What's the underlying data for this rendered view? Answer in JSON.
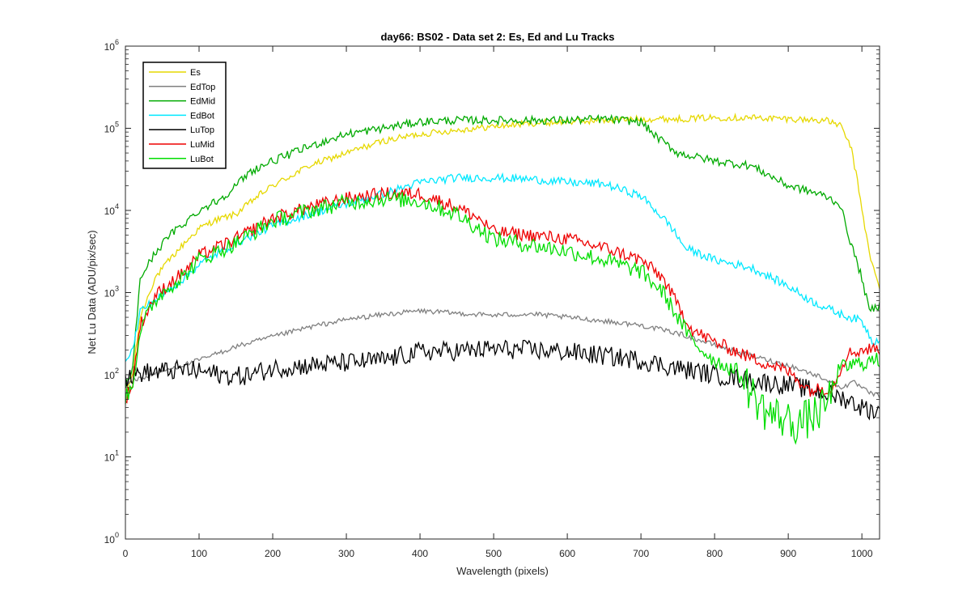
{
  "chart_data": {
    "type": "line",
    "title": "day66: BS02 - Data set 2: Es, Ed and Lu Tracks",
    "xlabel": "Wavelength (pixels)",
    "ylabel": "Net Lu Data (ADU/pix/sec)",
    "xlim": [
      0,
      1024
    ],
    "ylim": [
      1,
      1000000
    ],
    "yscale": "log",
    "grid": false,
    "legend_position": "top-left",
    "x_ticks": [
      0,
      100,
      200,
      300,
      400,
      500,
      600,
      700,
      800,
      900,
      1000
    ],
    "x_tick_labels": [
      "0",
      "100",
      "200",
      "300",
      "400",
      "500",
      "600",
      "700",
      "800",
      "900",
      "1000"
    ],
    "y_ticks": [
      1,
      10,
      100,
      1000,
      10000,
      100000,
      1000000
    ],
    "y_tick_labels": [
      {
        "base": "10",
        "exp": "0"
      },
      {
        "base": "10",
        "exp": "1"
      },
      {
        "base": "10",
        "exp": "2"
      },
      {
        "base": "10",
        "exp": "3"
      },
      {
        "base": "10",
        "exp": "4"
      },
      {
        "base": "10",
        "exp": "5"
      },
      {
        "base": "10",
        "exp": "6"
      }
    ],
    "series": [
      {
        "name": "Es",
        "color": "#e6d800",
        "points": [
          [
            0,
            60
          ],
          [
            10,
            100
          ],
          [
            20,
            500
          ],
          [
            40,
            1500
          ],
          [
            60,
            2500
          ],
          [
            80,
            4000
          ],
          [
            100,
            6000
          ],
          [
            120,
            7500
          ],
          [
            150,
            9000
          ],
          [
            180,
            15000
          ],
          [
            200,
            20000
          ],
          [
            250,
            35000
          ],
          [
            300,
            50000
          ],
          [
            350,
            70000
          ],
          [
            400,
            85000
          ],
          [
            450,
            95000
          ],
          [
            500,
            105000
          ],
          [
            550,
            115000
          ],
          [
            600,
            120000
          ],
          [
            650,
            125000
          ],
          [
            700,
            130000
          ],
          [
            750,
            130000
          ],
          [
            800,
            135000
          ],
          [
            850,
            135000
          ],
          [
            900,
            130000
          ],
          [
            950,
            125000
          ],
          [
            970,
            110000
          ],
          [
            985,
            60000
          ],
          [
            995,
            20000
          ],
          [
            1010,
            3000
          ],
          [
            1024,
            1100
          ]
        ]
      },
      {
        "name": "EdTop",
        "color": "#808080",
        "points": [
          [
            0,
            80
          ],
          [
            20,
            90
          ],
          [
            50,
            110
          ],
          [
            100,
            150
          ],
          [
            150,
            220
          ],
          [
            200,
            290
          ],
          [
            250,
            380
          ],
          [
            300,
            470
          ],
          [
            350,
            540
          ],
          [
            400,
            600
          ],
          [
            450,
            560
          ],
          [
            500,
            530
          ],
          [
            550,
            550
          ],
          [
            600,
            500
          ],
          [
            650,
            450
          ],
          [
            700,
            400
          ],
          [
            750,
            320
          ],
          [
            800,
            230
          ],
          [
            850,
            170
          ],
          [
            900,
            130
          ],
          [
            950,
            90
          ],
          [
            970,
            70
          ],
          [
            990,
            80
          ],
          [
            1010,
            60
          ],
          [
            1024,
            55
          ]
        ]
      },
      {
        "name": "EdMid",
        "color": "#00aa00",
        "points": [
          [
            0,
            70
          ],
          [
            10,
            120
          ],
          [
            20,
            1500
          ],
          [
            40,
            3000
          ],
          [
            60,
            5000
          ],
          [
            80,
            7000
          ],
          [
            100,
            10000
          ],
          [
            130,
            14000
          ],
          [
            150,
            20000
          ],
          [
            170,
            30000
          ],
          [
            200,
            40000
          ],
          [
            250,
            60000
          ],
          [
            300,
            85000
          ],
          [
            350,
            100000
          ],
          [
            400,
            120000
          ],
          [
            450,
            125000
          ],
          [
            500,
            125000
          ],
          [
            550,
            125000
          ],
          [
            600,
            125000
          ],
          [
            650,
            130000
          ],
          [
            700,
            120000
          ],
          [
            720,
            80000
          ],
          [
            750,
            50000
          ],
          [
            800,
            40000
          ],
          [
            850,
            35000
          ],
          [
            900,
            20000
          ],
          [
            920,
            18000
          ],
          [
            950,
            15000
          ],
          [
            970,
            12000
          ],
          [
            985,
            4000
          ],
          [
            1000,
            1500
          ],
          [
            1010,
            600
          ],
          [
            1024,
            700
          ]
        ]
      },
      {
        "name": "EdBot",
        "color": "#00e8ff",
        "points": [
          [
            0,
            160
          ],
          [
            10,
            200
          ],
          [
            20,
            600
          ],
          [
            40,
            800
          ],
          [
            60,
            1100
          ],
          [
            80,
            1500
          ],
          [
            100,
            2200
          ],
          [
            150,
            4000
          ],
          [
            200,
            6500
          ],
          [
            250,
            9000
          ],
          [
            300,
            12000
          ],
          [
            350,
            16000
          ],
          [
            400,
            22000
          ],
          [
            450,
            25000
          ],
          [
            500,
            25000
          ],
          [
            550,
            24000
          ],
          [
            600,
            22000
          ],
          [
            650,
            21000
          ],
          [
            700,
            15000
          ],
          [
            720,
            10000
          ],
          [
            740,
            6500
          ],
          [
            760,
            3500
          ],
          [
            800,
            2500
          ],
          [
            850,
            2000
          ],
          [
            900,
            1200
          ],
          [
            930,
            800
          ],
          [
            970,
            550
          ],
          [
            1000,
            450
          ],
          [
            1015,
            250
          ],
          [
            1024,
            280
          ]
        ]
      },
      {
        "name": "LuTop",
        "color": "#000000",
        "points": [
          [
            0,
            90
          ],
          [
            20,
            105
          ],
          [
            50,
            110
          ],
          [
            80,
            115
          ],
          [
            100,
            110
          ],
          [
            130,
            100
          ],
          [
            150,
            95
          ],
          [
            170,
            100
          ],
          [
            200,
            120
          ],
          [
            250,
            130
          ],
          [
            300,
            140
          ],
          [
            350,
            150
          ],
          [
            400,
            190
          ],
          [
            450,
            195
          ],
          [
            500,
            205
          ],
          [
            550,
            200
          ],
          [
            600,
            190
          ],
          [
            650,
            170
          ],
          [
            700,
            150
          ],
          [
            750,
            120
          ],
          [
            800,
            100
          ],
          [
            850,
            85
          ],
          [
            900,
            75
          ],
          [
            950,
            60
          ],
          [
            980,
            50
          ],
          [
            1000,
            40
          ],
          [
            1024,
            35
          ]
        ]
      },
      {
        "name": "LuMid",
        "color": "#ee0000",
        "points": [
          [
            0,
            50
          ],
          [
            10,
            80
          ],
          [
            20,
            400
          ],
          [
            40,
            900
          ],
          [
            60,
            1300
          ],
          [
            80,
            1800
          ],
          [
            100,
            2800
          ],
          [
            150,
            4500
          ],
          [
            200,
            8000
          ],
          [
            250,
            11000
          ],
          [
            300,
            14000
          ],
          [
            350,
            16000
          ],
          [
            400,
            16000
          ],
          [
            450,
            11000
          ],
          [
            480,
            8000
          ],
          [
            500,
            5500
          ],
          [
            550,
            5000
          ],
          [
            600,
            4500
          ],
          [
            650,
            3500
          ],
          [
            700,
            2500
          ],
          [
            730,
            1500
          ],
          [
            750,
            700
          ],
          [
            770,
            350
          ],
          [
            800,
            250
          ],
          [
            850,
            160
          ],
          [
            900,
            110
          ],
          [
            930,
            65
          ],
          [
            960,
            70
          ],
          [
            980,
            180
          ],
          [
            1000,
            200
          ],
          [
            1024,
            210
          ]
        ]
      },
      {
        "name": "LuBot",
        "color": "#00dd00",
        "points": [
          [
            0,
            50
          ],
          [
            10,
            80
          ],
          [
            20,
            350
          ],
          [
            40,
            800
          ],
          [
            60,
            1200
          ],
          [
            80,
            1600
          ],
          [
            100,
            2500
          ],
          [
            150,
            4000
          ],
          [
            200,
            7500
          ],
          [
            250,
            10000
          ],
          [
            300,
            12500
          ],
          [
            350,
            14000
          ],
          [
            400,
            13000
          ],
          [
            450,
            9000
          ],
          [
            480,
            6000
          ],
          [
            500,
            4500
          ],
          [
            550,
            3800
          ],
          [
            600,
            3200
          ],
          [
            650,
            2500
          ],
          [
            700,
            1800
          ],
          [
            730,
            1000
          ],
          [
            750,
            500
          ],
          [
            770,
            250
          ],
          [
            800,
            150
          ],
          [
            830,
            110
          ],
          [
            850,
            60
          ],
          [
            870,
            35
          ],
          [
            890,
            30
          ],
          [
            910,
            25
          ],
          [
            930,
            30
          ],
          [
            950,
            40
          ],
          [
            970,
            120
          ],
          [
            1000,
            140
          ],
          [
            1024,
            150
          ]
        ]
      }
    ]
  }
}
